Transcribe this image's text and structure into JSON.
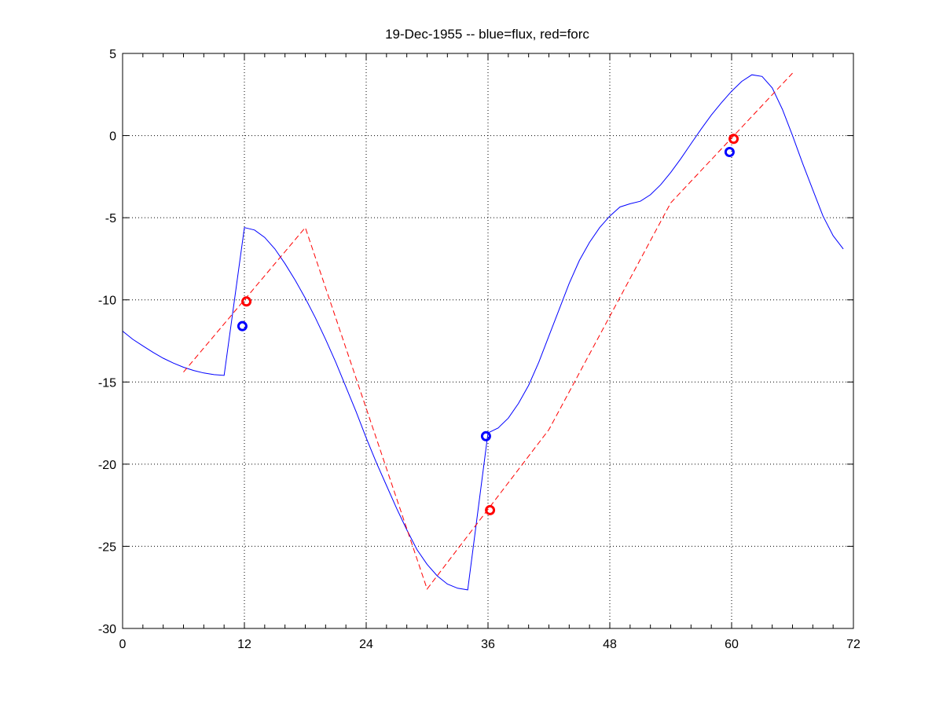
{
  "chart_data": {
    "type": "line",
    "title": "19-Dec-1955 -- blue=flux, red=forc",
    "xlabel": "",
    "ylabel": "",
    "xlim": [
      0,
      72
    ],
    "ylim": [
      -30,
      5
    ],
    "xticks": [
      0,
      12,
      24,
      36,
      48,
      60,
      72
    ],
    "yticks": [
      5,
      0,
      -5,
      -10,
      -15,
      -20,
      -25,
      -30
    ],
    "grid": true,
    "series": [
      {
        "color": "#0000ff",
        "style": "solid",
        "points": [
          [
            0,
            -11.9
          ],
          [
            1,
            -12.4
          ],
          [
            2,
            -12.8
          ],
          [
            3,
            -13.2
          ],
          [
            4,
            -13.55
          ],
          [
            5,
            -13.85
          ],
          [
            6,
            -14.1
          ],
          [
            7,
            -14.3
          ],
          [
            8,
            -14.45
          ],
          [
            9,
            -14.55
          ],
          [
            10,
            -14.6
          ],
          [
            12,
            -5.6
          ],
          [
            13,
            -5.75
          ],
          [
            14,
            -6.2
          ],
          [
            15,
            -6.9
          ],
          [
            16,
            -7.8
          ],
          [
            17,
            -8.8
          ],
          [
            18,
            -9.9
          ],
          [
            19,
            -11.1
          ],
          [
            20,
            -12.4
          ],
          [
            21,
            -13.8
          ],
          [
            22,
            -15.3
          ],
          [
            23,
            -16.8
          ],
          [
            24,
            -18.4
          ],
          [
            25,
            -19.9
          ],
          [
            26,
            -21.3
          ],
          [
            27,
            -22.7
          ],
          [
            28,
            -24.0
          ],
          [
            29,
            -25.2
          ],
          [
            30,
            -26.1
          ],
          [
            31,
            -26.8
          ],
          [
            32,
            -27.3
          ],
          [
            33,
            -27.55
          ],
          [
            34,
            -27.65
          ],
          [
            36,
            -18.1
          ],
          [
            37,
            -17.8
          ],
          [
            38,
            -17.2
          ],
          [
            39,
            -16.3
          ],
          [
            40,
            -15.2
          ],
          [
            41,
            -13.8
          ],
          [
            42,
            -12.2
          ],
          [
            43,
            -10.6
          ],
          [
            44,
            -9.0
          ],
          [
            45,
            -7.6
          ],
          [
            46,
            -6.5
          ],
          [
            47,
            -5.6
          ],
          [
            48,
            -4.9
          ],
          [
            49,
            -4.35
          ],
          [
            50,
            -4.15
          ],
          [
            51,
            -4.0
          ],
          [
            52,
            -3.6
          ],
          [
            53,
            -3.0
          ],
          [
            54,
            -2.25
          ],
          [
            55,
            -1.4
          ],
          [
            56,
            -0.5
          ],
          [
            57,
            0.4
          ],
          [
            58,
            1.25
          ],
          [
            59,
            2.0
          ],
          [
            60,
            2.7
          ],
          [
            61,
            3.3
          ],
          [
            62,
            3.7
          ],
          [
            63,
            3.6
          ],
          [
            64,
            2.9
          ],
          [
            65,
            1.6
          ],
          [
            66,
            0.0
          ],
          [
            67,
            -1.7
          ],
          [
            68,
            -3.3
          ],
          [
            69,
            -4.9
          ],
          [
            70,
            -6.1
          ],
          [
            71,
            -6.9
          ]
        ]
      },
      {
        "color": "#ff0000",
        "style": "dashed",
        "points": [
          [
            6,
            -14.4
          ],
          [
            18,
            -5.6
          ],
          [
            30,
            -27.6
          ],
          [
            42,
            -17.9
          ],
          [
            54,
            -4.1
          ],
          [
            66,
            3.8
          ]
        ]
      },
      {
        "color": "#0000ff",
        "style": "markers",
        "points": [
          [
            11.8,
            -11.6
          ],
          [
            35.8,
            -18.3
          ],
          [
            59.8,
            -1.0
          ]
        ]
      },
      {
        "color": "#ff0000",
        "style": "markers",
        "points": [
          [
            12.2,
            -10.1
          ],
          [
            36.2,
            -22.8
          ],
          [
            60.2,
            -0.2
          ]
        ]
      }
    ]
  }
}
